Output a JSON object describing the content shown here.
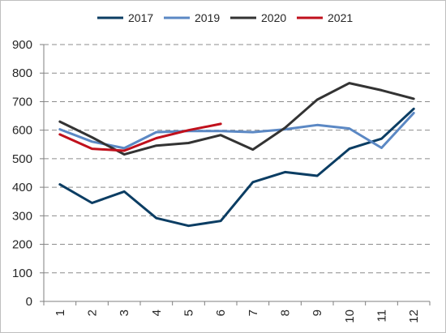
{
  "chart_data": {
    "type": "line",
    "title": "",
    "xlabel": "",
    "ylabel": "",
    "categories": [
      "1",
      "2",
      "3",
      "4",
      "5",
      "6",
      "7",
      "8",
      "9",
      "10",
      "11",
      "12"
    ],
    "ylim": [
      0,
      900
    ],
    "yticks": [
      0,
      100,
      200,
      300,
      400,
      500,
      600,
      700,
      800,
      900
    ],
    "grid": true,
    "legend_position": "top",
    "series": [
      {
        "name": "2017",
        "color": "#0b3d63",
        "values": [
          410,
          345,
          385,
          292,
          265,
          282,
          418,
          453,
          440,
          535,
          570,
          675
        ]
      },
      {
        "name": "2019",
        "color": "#5b88c4",
        "values": [
          603,
          560,
          537,
          593,
          597,
          597,
          593,
          603,
          618,
          606,
          538,
          660
        ]
      },
      {
        "name": "2020",
        "color": "#333333",
        "values": [
          630,
          575,
          515,
          546,
          555,
          583,
          532,
          608,
          707,
          765,
          740,
          710
        ]
      },
      {
        "name": "2021",
        "color": "#c0101c",
        "values": [
          585,
          535,
          528,
          572,
          600,
          622,
          null,
          null,
          null,
          null,
          null,
          null
        ]
      }
    ]
  }
}
